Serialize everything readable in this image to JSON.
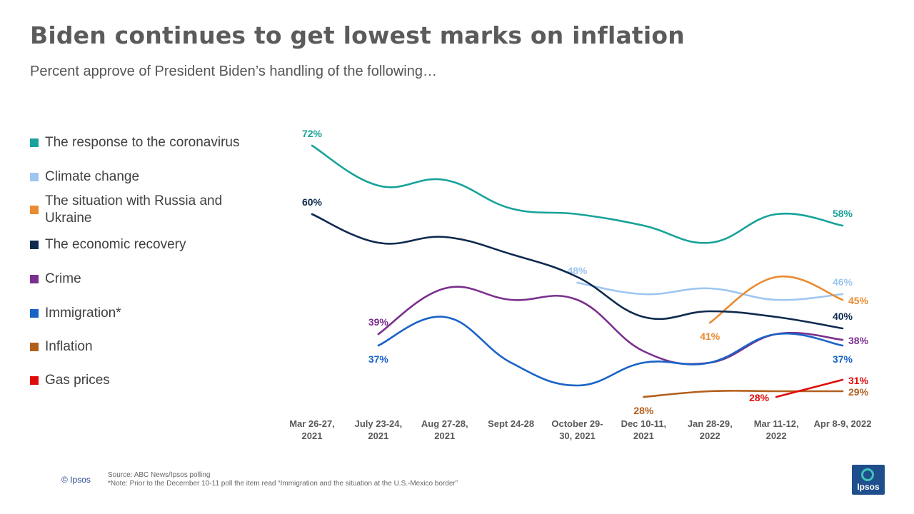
{
  "title": "Biden continues to get lowest marks on inflation",
  "subtitle": "Percent approve of President Biden’s handling of the following…",
  "footer": {
    "copyright": "© Ipsos",
    "source": "Source: ABC News/Ipsos polling",
    "note": "*Note: Prior to the December 10-11 poll the item read “Immigration and the situation at the U.S.-Mexico border”",
    "logo_text": "Ipsos"
  },
  "chart_data": {
    "type": "line",
    "title": "Biden continues to get lowest marks on inflation",
    "subtitle": "Percent approve of President Biden’s handling of the following…",
    "xlabel": "",
    "ylabel": "",
    "ylim": [
      20,
      80
    ],
    "grid": false,
    "legend": "left",
    "categories": [
      [
        "Mar 26-27,",
        "2021"
      ],
      [
        "July 23-24,",
        "2021"
      ],
      [
        "Aug 27-28,",
        "2021"
      ],
      [
        "Sept 24-28"
      ],
      [
        "October 29-",
        "30, 2021"
      ],
      [
        "Dec 10-11,",
        "2021"
      ],
      [
        "Jan 28-29,",
        "2022"
      ],
      [
        "Mar 11-12,",
        "2022"
      ],
      [
        "Apr 8-9, 2022"
      ]
    ],
    "series": [
      {
        "name": "The response to the coronavirus",
        "color": "#17a29a",
        "values": [
          72,
          65,
          66,
          61,
          60,
          58,
          55,
          60,
          58
        ],
        "labels": [
          {
            "i": 0,
            "text": "72%",
            "pos": "above"
          },
          {
            "i": 8,
            "text": "58%",
            "pos": "above"
          }
        ]
      },
      {
        "name": "Climate change",
        "color": "#9ec6f0",
        "values": [
          null,
          null,
          null,
          null,
          48,
          46,
          47,
          45,
          46
        ],
        "labels": [
          {
            "i": 4,
            "text": "48%",
            "pos": "above"
          },
          {
            "i": 8,
            "text": "46%",
            "pos": "above"
          }
        ]
      },
      {
        "name": "The situation with Russia and Ukraine",
        "color": "#e98b31",
        "values": [
          null,
          null,
          null,
          null,
          null,
          null,
          41,
          49,
          45
        ],
        "labels": [
          {
            "i": 6,
            "text": "41%",
            "pos": "below"
          },
          {
            "i": 8,
            "text": "45%",
            "pos": "right"
          }
        ]
      },
      {
        "name": "The economic recovery",
        "color": "#0e2a4d",
        "values": [
          60,
          55,
          56,
          53,
          49,
          42,
          43,
          42,
          40
        ],
        "labels": [
          {
            "i": 0,
            "text": "60%",
            "pos": "above"
          },
          {
            "i": 8,
            "text": "40%",
            "pos": "above"
          }
        ]
      },
      {
        "name": "Crime",
        "color": "#7b2f8e",
        "values": [
          null,
          39,
          47,
          45,
          45,
          36,
          34,
          39,
          38
        ],
        "labels": [
          {
            "i": 1,
            "text": "39%",
            "pos": "above"
          },
          {
            "i": 8,
            "text": "38%",
            "pos": "right"
          }
        ]
      },
      {
        "name": "Immigration*",
        "color": "#1a63c6",
        "values": [
          null,
          37,
          42,
          34,
          30,
          34,
          34,
          39,
          37
        ],
        "labels": [
          {
            "i": 1,
            "text": "37%",
            "pos": "below"
          },
          {
            "i": 8,
            "text": "37%",
            "pos": "below"
          }
        ]
      },
      {
        "name": "Inflation",
        "color": "#b35f1c",
        "values": [
          null,
          null,
          null,
          null,
          null,
          28,
          29,
          29,
          29
        ],
        "labels": [
          {
            "i": 5,
            "text": "28%",
            "pos": "below"
          },
          {
            "i": 8,
            "text": "29%",
            "pos": "right"
          }
        ]
      },
      {
        "name": "Gas prices",
        "color": "#e00a0a",
        "values": [
          null,
          null,
          null,
          null,
          null,
          null,
          null,
          28,
          31
        ],
        "labels": [
          {
            "i": 7,
            "text": "28%",
            "pos": "left"
          },
          {
            "i": 8,
            "text": "31%",
            "pos": "right"
          }
        ]
      }
    ]
  }
}
